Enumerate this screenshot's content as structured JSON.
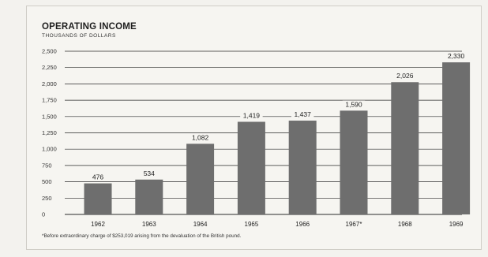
{
  "chart_data": {
    "type": "bar",
    "title": "OPERATING INCOME",
    "subtitle": "THOUSANDS OF DOLLARS",
    "categories": [
      "1962",
      "1963",
      "1964",
      "1965",
      "1966",
      "1967*",
      "1968",
      "1969"
    ],
    "values": [
      476,
      534,
      1082,
      1419,
      1437,
      1590,
      2026,
      2330
    ],
    "data_labels": [
      "476",
      "534",
      "1,082",
      "1,419",
      "1,437",
      "1,590",
      "2,026",
      "2,330"
    ],
    "y_ticks": [
      0,
      250,
      500,
      750,
      1000,
      1250,
      1500,
      1750,
      2000,
      2250,
      2500
    ],
    "y_tick_labels": [
      "0",
      "250",
      "500",
      "750",
      "1,000",
      "1,250",
      "1,500",
      "1,750",
      "2,000",
      "2,250",
      "2,500"
    ],
    "ylim": [
      0,
      2500
    ],
    "grid": true,
    "bar_color": "#6e6e6e",
    "footnote": "*Before extraordinary charge of $253,019 arising from the devaluation of the British pound."
  }
}
